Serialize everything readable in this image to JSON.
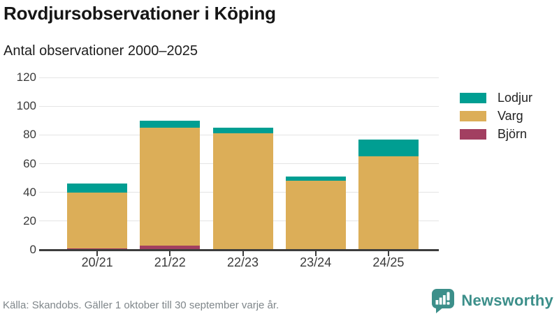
{
  "header": {
    "title": "Rovdjursobservationer i Köping",
    "subtitle": "Antal observationer 2000–2025"
  },
  "chart_data": {
    "type": "bar",
    "stacked": true,
    "title": "Rovdjursobservationer i Köping",
    "subtitle": "Antal observationer 2000–2025",
    "categories": [
      "20/21",
      "21/22",
      "22/23",
      "23/24",
      "24/25"
    ],
    "series": [
      {
        "name": "Björn",
        "color": "#a23f61",
        "values": [
          1,
          3,
          0,
          0,
          0
        ]
      },
      {
        "name": "Varg",
        "color": "#dcae58",
        "values": [
          39,
          82,
          81,
          48,
          65
        ]
      },
      {
        "name": "Lodjur",
        "color": "#009e92",
        "values": [
          6,
          5,
          4,
          3,
          12
        ]
      }
    ],
    "legend_order": [
      "Lodjur",
      "Varg",
      "Björn"
    ],
    "legend_position": "right",
    "ylim": [
      0,
      120
    ],
    "yticks": [
      0,
      20,
      40,
      60,
      80,
      100,
      120
    ],
    "grid": "horizontal",
    "xlabel": "",
    "ylabel": ""
  },
  "footer": {
    "source": "Källa: Skandobs. Gäller 1 oktober till 30 september varje år.",
    "brand": "Newsworthy"
  },
  "colors": {
    "lodjur": "#009e92",
    "varg": "#dcae58",
    "bjorn": "#a23f61",
    "brand_teal": "#3c8f8a",
    "axis": "#3d3d3d",
    "grid": "#e4e4e4"
  }
}
